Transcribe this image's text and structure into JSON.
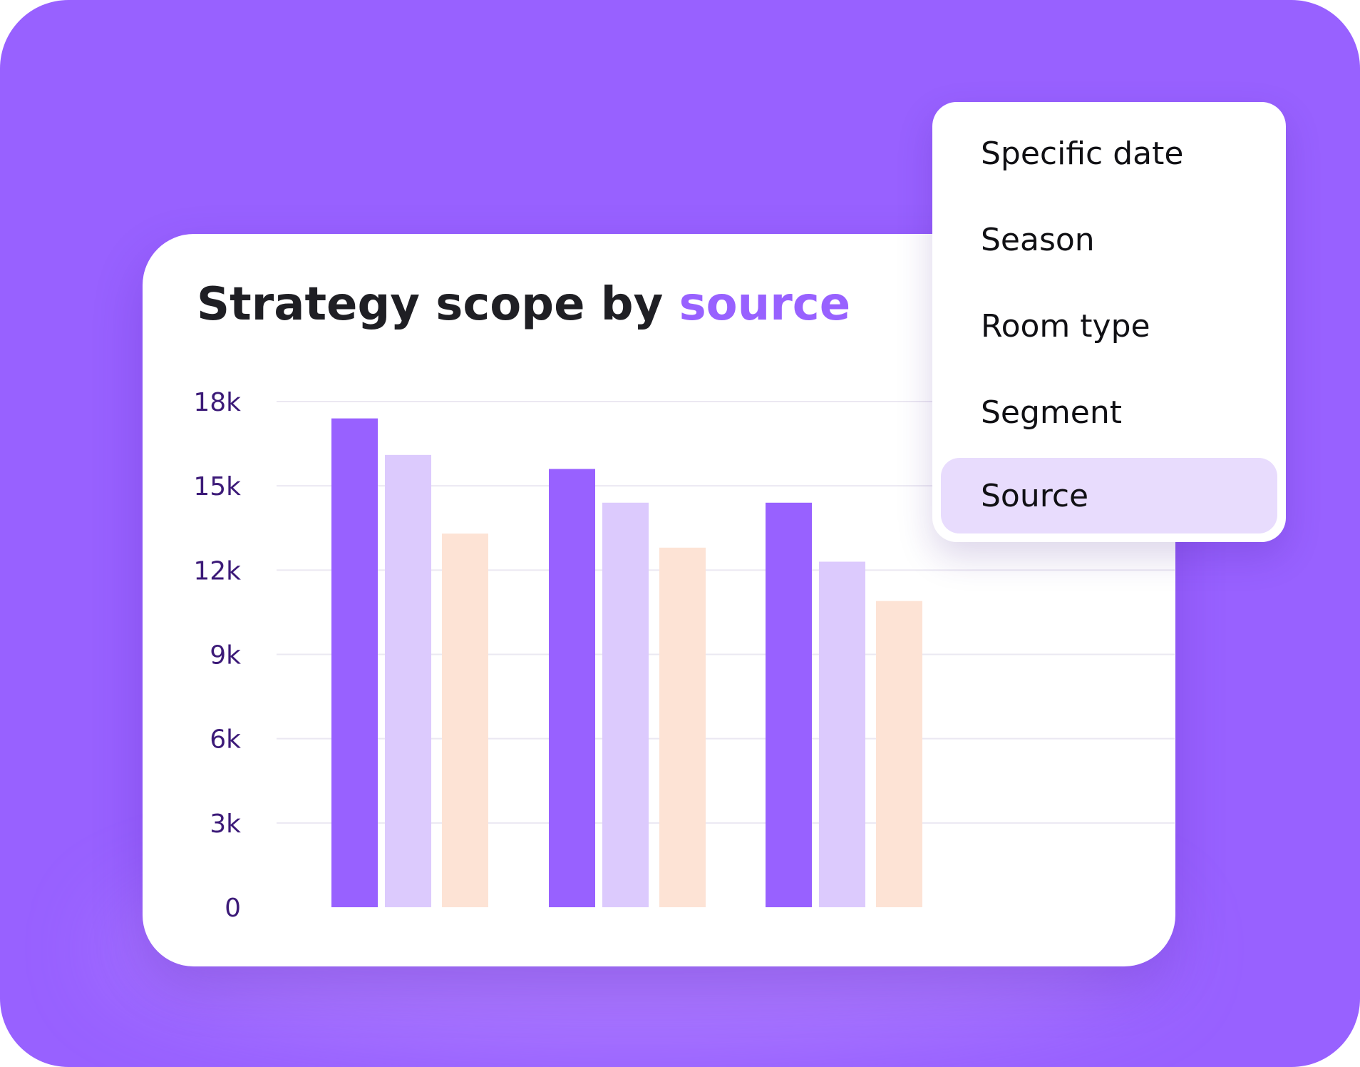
{
  "title": {
    "prefix": "Strategy scope by ",
    "highlight": "source"
  },
  "colors": {
    "background": "#9861ff",
    "card": "#ffffff",
    "series_1": "#9861ff",
    "series_2": "#dccafd",
    "series_3": "#fde3d5",
    "accent": "#9861ff",
    "tick_label": "#3c1a78",
    "menu_selected": "#e8dcfd"
  },
  "menu": {
    "items": [
      {
        "label": "Specific date",
        "selected": false
      },
      {
        "label": "Season",
        "selected": false
      },
      {
        "label": "Room type",
        "selected": false
      },
      {
        "label": "Segment",
        "selected": false
      },
      {
        "label": "Source",
        "selected": true
      }
    ]
  },
  "chart_data": {
    "type": "bar",
    "title": "Strategy scope by source",
    "xlabel": "",
    "ylabel": "",
    "ylim": [
      0,
      18000
    ],
    "yticks": [
      0,
      3000,
      6000,
      9000,
      12000,
      15000,
      18000
    ],
    "ytick_labels": [
      "0",
      "3k",
      "6k",
      "9k",
      "12k",
      "15k",
      "18k"
    ],
    "grid": true,
    "legend": "none",
    "categories": [
      "",
      "",
      ""
    ],
    "series": [
      {
        "values": [
          17400,
          15600,
          14400
        ]
      },
      {
        "values": [
          16100,
          14400,
          12300
        ]
      },
      {
        "values": [
          13300,
          12800,
          10900
        ]
      }
    ]
  }
}
